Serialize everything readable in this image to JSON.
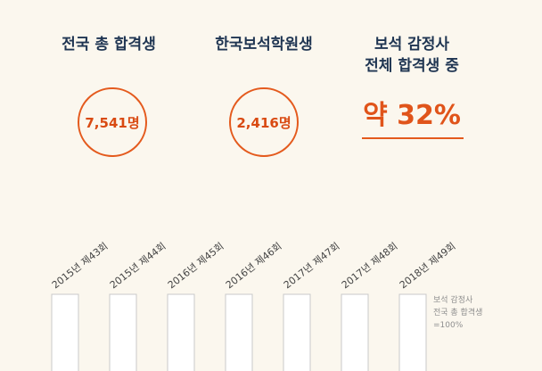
{
  "stats": [
    {
      "title": "전국 총 합격생",
      "value": "7,541명"
    },
    {
      "title": "한국보석학원생",
      "value": "2,416명"
    }
  ],
  "ratio": {
    "title_line1": "보석 감정사",
    "title_line2": "전체 합격생 중",
    "value": "약 32%"
  },
  "chart_data": {
    "type": "bar",
    "categories": [
      "2015년 제43회",
      "2015년 제44회",
      "2016년 제45회",
      "2016년 제46회",
      "2017년 제47회",
      "2017년 제48회",
      "2018년 제49회"
    ],
    "values": [
      100,
      100,
      100,
      100,
      100,
      100,
      100
    ],
    "ylim": [
      0,
      100
    ],
    "title": "",
    "xlabel": "",
    "ylabel": "",
    "note_lines": [
      "보석 감정사",
      "전국 총 합격생",
      "=100%"
    ]
  },
  "colors": {
    "accent": "#e45a1d",
    "heading": "#1f3552",
    "background": "#fbf7ee"
  }
}
